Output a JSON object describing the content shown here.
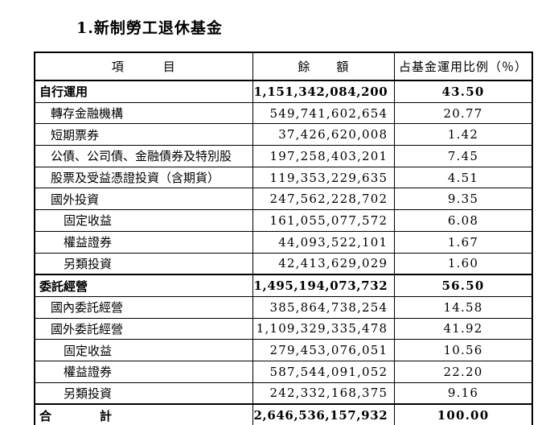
{
  "page": {
    "title": "1.新制勞工退休基金"
  },
  "table": {
    "headers": {
      "item": "項　　　目",
      "balance": "餘　　額",
      "ratio": "占基金運用比例（％）"
    },
    "rows": [
      {
        "label": "自行運用",
        "balance": "1,151,342,084,200",
        "ratio": "43.50",
        "level": 0,
        "bold": true
      },
      {
        "label": "轉存金融機構",
        "balance": "549,741,602,654",
        "ratio": "20.77",
        "level": 1,
        "bold": false
      },
      {
        "label": "短期票券",
        "balance": "37,426,620,008",
        "ratio": "1.42",
        "level": 1,
        "bold": false
      },
      {
        "label": "公債、公司債、金融債券及特別股",
        "balance": "197,258,403,201",
        "ratio": "7.45",
        "level": 1,
        "bold": false
      },
      {
        "label": "股票及受益憑證投資（含期貨）",
        "balance": "119,353,229,635",
        "ratio": "4.51",
        "level": 1,
        "bold": false
      },
      {
        "label": "國外投資",
        "balance": "247,562,228,702",
        "ratio": "9.35",
        "level": 1,
        "bold": false
      },
      {
        "label": "固定收益",
        "balance": "161,055,077,572",
        "ratio": "6.08",
        "level": 2,
        "bold": false
      },
      {
        "label": "權益證券",
        "balance": "44,093,522,101",
        "ratio": "1.67",
        "level": 2,
        "bold": false
      },
      {
        "label": "另類投資",
        "balance": "42,413,629,029",
        "ratio": "1.60",
        "level": 2,
        "bold": false
      },
      {
        "label": "委託經營",
        "balance": "1,495,194,073,732",
        "ratio": "56.50",
        "level": 0,
        "bold": true
      },
      {
        "label": "國內委託經營",
        "balance": "385,864,738,254",
        "ratio": "14.58",
        "level": 1,
        "bold": false
      },
      {
        "label": "國外委託經營",
        "balance": "1,109,329,335,478",
        "ratio": "41.92",
        "level": 1,
        "bold": false
      },
      {
        "label": "固定收益",
        "balance": "279,453,076,051",
        "ratio": "10.56",
        "level": 2,
        "bold": false
      },
      {
        "label": "權益證券",
        "balance": "587,544,091,052",
        "ratio": "22.20",
        "level": 2,
        "bold": false
      },
      {
        "label": "另類投資",
        "balance": "242,332,168,375",
        "ratio": "9.16",
        "level": 2,
        "bold": false
      },
      {
        "label": "合　　　　計",
        "balance": "2,646,536,157,932",
        "ratio": "100.00",
        "level": 0,
        "bold": true
      }
    ]
  }
}
